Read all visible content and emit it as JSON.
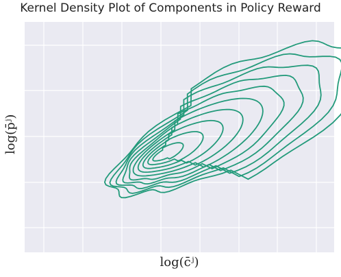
{
  "chart_data": {
    "type": "kde",
    "title": "Kernel Density Plot of Components in Policy Reward",
    "xlabel": "log(c̄ʲ)",
    "ylabel": "log(p̄ʲ)",
    "grid": true,
    "contour_levels": 10,
    "line_color": "#229a7a",
    "background_color": "#eaeaf2"
  }
}
